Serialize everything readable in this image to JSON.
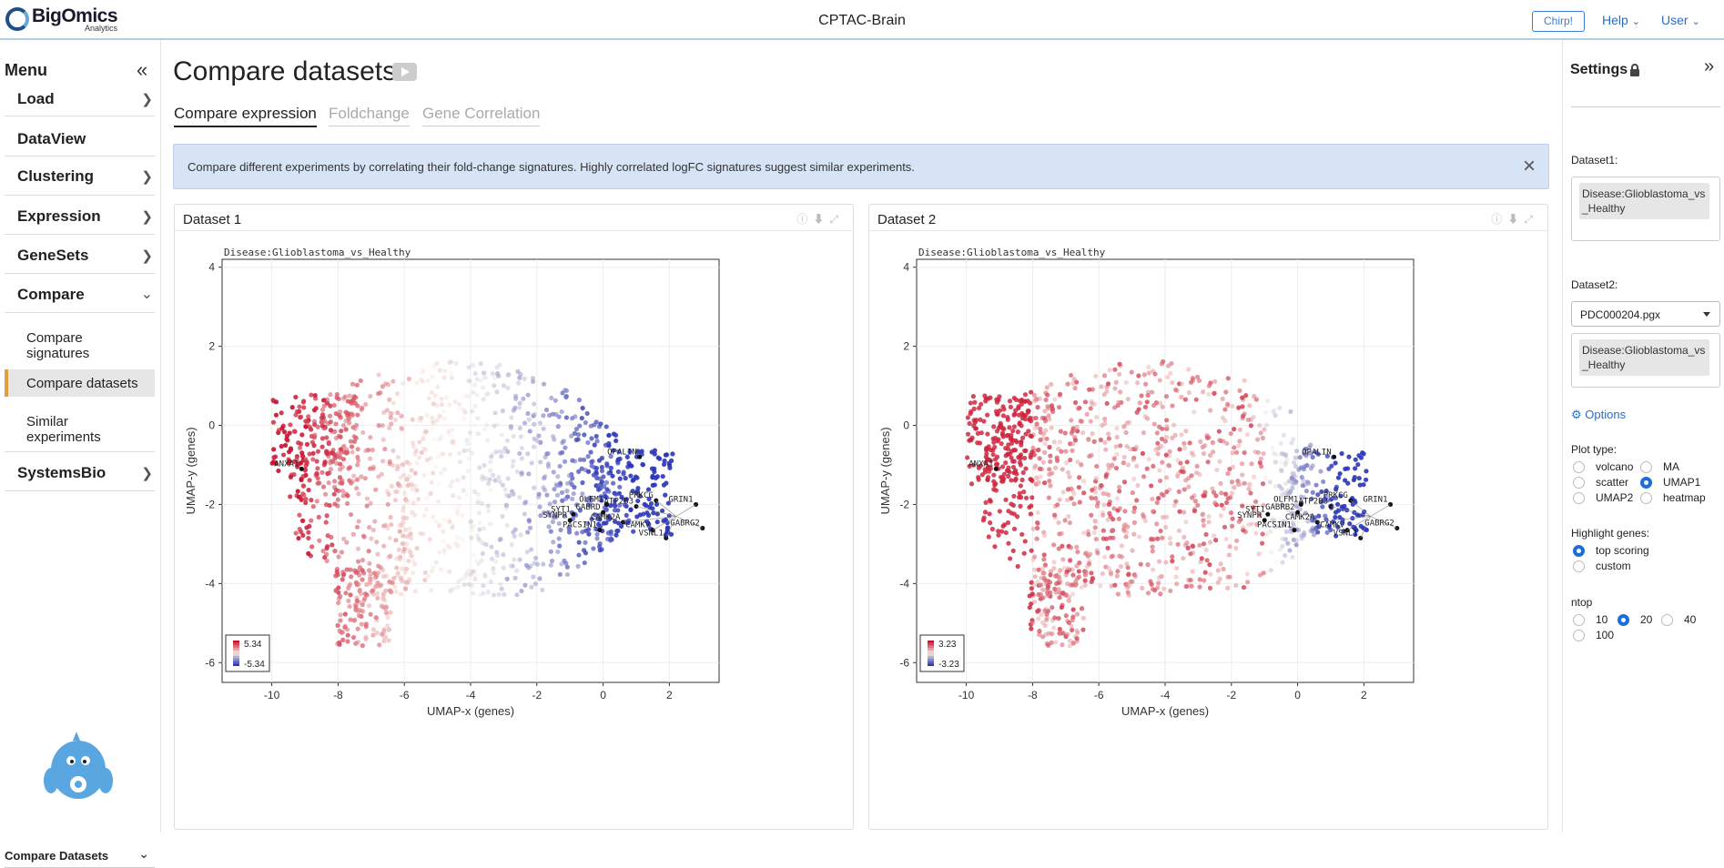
{
  "brand": {
    "name": "BigOmics",
    "subtitle": "Analytics"
  },
  "app_title": "CPTAC-Brain",
  "topbar": {
    "chirp_label": "Chirp!",
    "help_label": "Help",
    "user_label": "User"
  },
  "sidebar": {
    "title": "Menu",
    "items": [
      {
        "label": "Load",
        "icon": "chevron-right-icon"
      },
      {
        "label": "DataView",
        "icon": ""
      },
      {
        "label": "Clustering",
        "icon": "chevron-right-icon"
      },
      {
        "label": "Expression",
        "icon": "chevron-right-icon"
      },
      {
        "label": "GeneSets",
        "icon": "chevron-right-icon"
      },
      {
        "label": "Compare",
        "icon": "chevron-down-icon"
      },
      {
        "label": "SystemsBio",
        "icon": "chevron-right-icon"
      }
    ],
    "subitems": [
      {
        "label": "Compare signatures"
      },
      {
        "label": "Compare datasets"
      },
      {
        "label": "Similar experiments"
      }
    ],
    "footer_select": "Compare Datasets"
  },
  "main": {
    "title": "Compare datasets",
    "tabs": [
      {
        "label": "Compare expression",
        "active": true
      },
      {
        "label": "Foldchange",
        "active": false
      },
      {
        "label": "Gene Correlation",
        "active": false
      }
    ],
    "info_text": "Compare different experiments by correlating their fold-change signatures. Highly correlated logFC signatures suggest similar experiments."
  },
  "colors": {
    "accent": "#1a6ed8",
    "high": "#c8102e",
    "low": "#2a35b8",
    "info_bg": "#d6e4f5",
    "active_menu": "#e0a040"
  },
  "chart_data": [
    {
      "panel": "Dataset 1",
      "type": "scatter",
      "title": "Disease:Glioblastoma_vs_Healthy",
      "xlabel": "UMAP-x  (genes)",
      "ylabel": "UMAP-y  (genes)",
      "xlim": [
        -11.5,
        3.5
      ],
      "ylim": [
        -6.5,
        4.2
      ],
      "xticks": [
        -10,
        -8,
        -6,
        -4,
        -2,
        0,
        2
      ],
      "yticks": [
        -6,
        -4,
        -2,
        0,
        2,
        4
      ],
      "legend": {
        "max": "5.34",
        "min": "-5.34",
        "placement": "bottom-left"
      },
      "labels": [
        {
          "text": "ANXA1",
          "x": -9.1,
          "y": -1.1
        },
        {
          "text": "OPALIN",
          "x": 1.1,
          "y": -0.8
        },
        {
          "text": "PRKCG",
          "x": 1.6,
          "y": -1.9
        },
        {
          "text": "GRIN1",
          "x": 2.8,
          "y": -2.0
        },
        {
          "text": "OLFM1",
          "x": 0.1,
          "y": -2.0
        },
        {
          "text": "ATP2B3",
          "x": 1.0,
          "y": -2.05
        },
        {
          "text": "SYT1",
          "x": -0.9,
          "y": -2.25
        },
        {
          "text": "GABRD",
          "x": 0.0,
          "y": -2.2
        },
        {
          "text": "SYNPR",
          "x": -1.0,
          "y": -2.4
        },
        {
          "text": "CAMK2A",
          "x": 0.6,
          "y": -2.45
        },
        {
          "text": "PACSIN1",
          "x": -0.1,
          "y": -2.65
        },
        {
          "text": "CAMKV",
          "x": 1.5,
          "y": -2.65
        },
        {
          "text": "GABRG2",
          "x": 3.0,
          "y": -2.6
        },
        {
          "text": "VSNL1",
          "x": 1.9,
          "y": -2.85
        }
      ]
    },
    {
      "panel": "Dataset 2",
      "type": "scatter",
      "title": "Disease:Glioblastoma_vs_Healthy",
      "xlabel": "UMAP-x  (genes)",
      "ylabel": "UMAP-y  (genes)",
      "xlim": [
        -11.5,
        3.5
      ],
      "ylim": [
        -6.5,
        4.2
      ],
      "xticks": [
        -10,
        -8,
        -6,
        -4,
        -2,
        0,
        2
      ],
      "yticks": [
        -6,
        -4,
        -2,
        0,
        2,
        4
      ],
      "legend": {
        "max": "3.23",
        "min": "-3.23",
        "placement": "bottom-left"
      },
      "labels": [
        {
          "text": "ANXA1",
          "x": -9.1,
          "y": -1.1
        },
        {
          "text": "OPALIN",
          "x": 1.1,
          "y": -0.8
        },
        {
          "text": "PRKCG",
          "x": 1.6,
          "y": -1.9
        },
        {
          "text": "GRIN1",
          "x": 2.8,
          "y": -2.0
        },
        {
          "text": "OLFM1",
          "x": 0.1,
          "y": -2.0
        },
        {
          "text": "ATP2B3",
          "x": 1.0,
          "y": -2.05
        },
        {
          "text": "SYT1",
          "x": -0.9,
          "y": -2.25
        },
        {
          "text": "GABRB2",
          "x": 0.0,
          "y": -2.2
        },
        {
          "text": "SYNPR",
          "x": -1.0,
          "y": -2.4
        },
        {
          "text": "CAMK2A",
          "x": 0.6,
          "y": -2.45
        },
        {
          "text": "PACSIN1",
          "x": -0.1,
          "y": -2.65
        },
        {
          "text": "CAMKV",
          "x": 1.5,
          "y": -2.65
        },
        {
          "text": "GABRG2",
          "x": 3.0,
          "y": -2.6
        },
        {
          "text": "VSNL1",
          "x": 1.9,
          "y": -2.85
        }
      ]
    }
  ],
  "settings": {
    "title": "Settings",
    "dataset1_label": "Dataset1:",
    "dataset1_contrast": "Disease:Glioblastoma_vs_Healthy",
    "dataset2_label": "Dataset2:",
    "dataset2_file": "PDC000204.pgx",
    "dataset2_contrast": "Disease:Glioblastoma_vs_Healthy",
    "options_label": "Options",
    "plot_type_label": "Plot type:",
    "plot_types": [
      {
        "label": "volcano",
        "selected": false
      },
      {
        "label": "MA",
        "selected": false
      },
      {
        "label": "scatter",
        "selected": false
      },
      {
        "label": "UMAP1",
        "selected": true
      },
      {
        "label": "UMAP2",
        "selected": false
      },
      {
        "label": "heatmap",
        "selected": false
      }
    ],
    "highlight_label": "Highlight genes:",
    "highlight_options": [
      {
        "label": "top scoring",
        "selected": true
      },
      {
        "label": "custom",
        "selected": false
      }
    ],
    "ntop_label": "ntop",
    "ntop_options": [
      {
        "label": "10",
        "selected": false
      },
      {
        "label": "20",
        "selected": true
      },
      {
        "label": "40",
        "selected": false
      },
      {
        "label": "100",
        "selected": false
      }
    ]
  }
}
